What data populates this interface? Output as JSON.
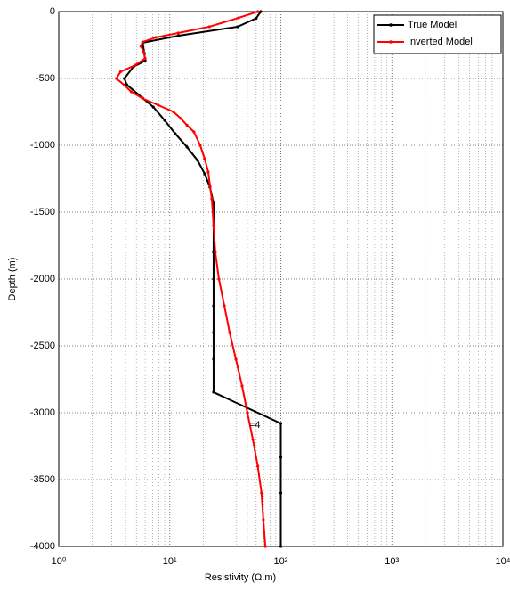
{
  "chart_data": {
    "type": "line",
    "x_label": "Resistivity (Ω.m)",
    "y_label": "Depth (m)",
    "annotation": "=4",
    "xscale": "log",
    "xlim": [
      1,
      10000
    ],
    "xticks": [
      {
        "value": 1,
        "label": "10⁰"
      },
      {
        "value": 10,
        "label": "10¹"
      },
      {
        "value": 100,
        "label": "10²"
      },
      {
        "value": 1000,
        "label": "10³"
      },
      {
        "value": 10000,
        "label": "10⁴"
      }
    ],
    "ylim": [
      -4000,
      0
    ],
    "yticks": [
      0,
      -500,
      -1000,
      -1500,
      -2000,
      -2500,
      -3000,
      -3500,
      -4000
    ],
    "grid": true,
    "minor_grid": true,
    "legend": "northeast",
    "series": [
      {
        "name": "True Model",
        "color": "#000000",
        "x": [
          66,
          60,
          41,
          12,
          5.7,
          5.9,
          6.0,
          4.7,
          3.9,
          4.1,
          5.7,
          7.1,
          9,
          11.2,
          14.3,
          17.8,
          20.6,
          23,
          24.8,
          24.8,
          24.8,
          24.8,
          24.8,
          24.8,
          24.8,
          24.8,
          100,
          100,
          100,
          100
        ],
        "y": [
          0,
          -50,
          -113,
          -180,
          -233,
          -313,
          -367,
          -413,
          -500,
          -547,
          -647,
          -713,
          -813,
          -913,
          -1013,
          -1113,
          -1213,
          -1313,
          -1433,
          -1600,
          -1800,
          -2000,
          -2200,
          -2400,
          -2600,
          -2847,
          -3080,
          -3333,
          -3600,
          -4000
        ]
      },
      {
        "name": "Inverted Model",
        "color": "#ff0000",
        "x": [
          62,
          41.5,
          22.7,
          11.9,
          7.5,
          5.7,
          5.5,
          5.8,
          6.0,
          4.9,
          3.6,
          3.3,
          3.9,
          4.5,
          5.7,
          7.9,
          10.8,
          12.6,
          14.3,
          16.5,
          18.8,
          20.6,
          22.2,
          23,
          23.9,
          24.8,
          25.7,
          27.7,
          31,
          34.6,
          39.4,
          44.8,
          50,
          56,
          62,
          67,
          69.6,
          72.5
        ],
        "y": [
          0,
          -47,
          -113,
          -160,
          -193,
          -227,
          -260,
          -300,
          -350,
          -400,
          -450,
          -500,
          -550,
          -600,
          -650,
          -700,
          -750,
          -800,
          -850,
          -900,
          -1000,
          -1100,
          -1200,
          -1300,
          -1400,
          -1600,
          -1800,
          -2000,
          -2200,
          -2400,
          -2600,
          -2800,
          -3000,
          -3200,
          -3400,
          -3600,
          -3800,
          -4000
        ]
      }
    ]
  }
}
